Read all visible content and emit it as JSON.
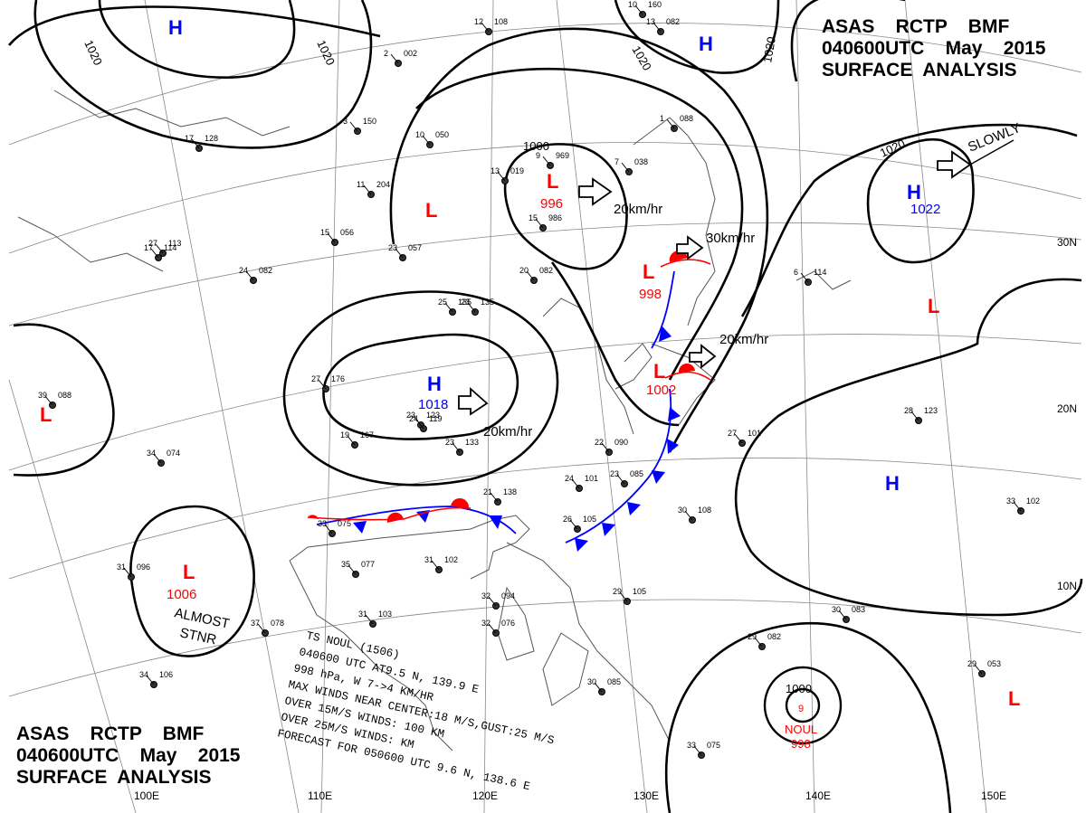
{
  "header_top": {
    "line1": "ASAS    RCTP    BMF",
    "line2": "040600UTC    May    2015",
    "line3": "SURFACE  ANALYSIS"
  },
  "header_bottom": {
    "line1": "ASAS    RCTP    BMF",
    "line2": "040600UTC    May    2015",
    "line3": "SURFACE  ANALYSIS"
  },
  "isobar_labels": [
    "1020",
    "1020",
    "1020",
    "1020",
    "1020",
    "1000",
    "1000"
  ],
  "pressure_centers": [
    {
      "type": "H",
      "value": "",
      "color": "#0000ff"
    },
    {
      "type": "H",
      "value": "",
      "color": "#0000ff"
    },
    {
      "type": "H",
      "value": "1022",
      "color": "#0000ff"
    },
    {
      "type": "H",
      "value": "1018",
      "color": "#0000ff"
    },
    {
      "type": "H",
      "value": "",
      "color": "#0000ff"
    },
    {
      "type": "L",
      "value": "996",
      "color": "#ff0000"
    },
    {
      "type": "L",
      "value": "",
      "color": "#ff0000"
    },
    {
      "type": "L",
      "value": "998",
      "color": "#ff0000"
    },
    {
      "type": "L",
      "value": "1002",
      "color": "#ff0000"
    },
    {
      "type": "L",
      "value": "1006",
      "color": "#ff0000"
    },
    {
      "type": "L",
      "value": "",
      "color": "#ff0000"
    },
    {
      "type": "L",
      "value": "",
      "color": "#ff0000"
    },
    {
      "type": "L",
      "value": "",
      "color": "#ff0000"
    }
  ],
  "motion_labels": [
    "20km/hr",
    "30km/hr",
    "20km/hr",
    "20km/hr",
    "SLOWLY"
  ],
  "almost_stnr": [
    "ALMOST",
    "STNR"
  ],
  "typhoon_center": {
    "isobar": "1000",
    "name": "NOUL",
    "pressure": "998"
  },
  "typhoon_bulletin": [
    "TS NOUL (1506)",
    "040600 UTC  AT9.5 N, 139.9 E",
    "998 hPa, W  7->4 KM/HR",
    "MAX WINDS NEAR CENTER:18 M/S,GUST:25 M/S",
    "OVER 15M/S WINDS: 100 KM",
    "OVER 25M/S WINDS:    KM",
    "FORECAST FOR 050600 UTC 9.6 N, 138.6 E"
  ],
  "latitude_labels": [
    "30N",
    "20N",
    "10N"
  ],
  "longitude_labels": [
    "100E",
    "110E",
    "120E",
    "130E",
    "140E",
    "150E"
  ],
  "station_plots": [
    {
      "n": "23",
      "t": "123"
    },
    {
      "n": "12",
      "t": "108"
    },
    {
      "n": "13",
      "t": "082"
    },
    {
      "n": "24",
      "t": "082"
    },
    {
      "n": "25",
      "t": "135"
    },
    {
      "n": "27",
      "t": "176"
    },
    {
      "n": "23",
      "t": "133"
    },
    {
      "n": "22",
      "t": "090"
    },
    {
      "n": "24",
      "t": "101"
    },
    {
      "n": "23",
      "t": "085"
    },
    {
      "n": "30",
      "t": "108"
    },
    {
      "n": "28",
      "t": "123"
    },
    {
      "n": "27",
      "t": "101"
    },
    {
      "n": "33",
      "t": "102"
    },
    {
      "n": "26",
      "t": "105"
    },
    {
      "n": "21",
      "t": "138"
    },
    {
      "n": "33",
      "t": "075"
    },
    {
      "n": "31",
      "t": "102"
    },
    {
      "n": "35",
      "t": "077"
    },
    {
      "n": "29",
      "t": "105"
    },
    {
      "n": "30",
      "t": "083"
    },
    {
      "n": "29",
      "t": "082"
    },
    {
      "n": "29",
      "t": "053"
    },
    {
      "n": "33",
      "t": "075"
    },
    {
      "n": "30",
      "t": "085"
    },
    {
      "n": "32",
      "t": "094"
    },
    {
      "n": "32",
      "t": "076"
    },
    {
      "n": "31",
      "t": "103"
    },
    {
      "n": "37",
      "t": "078"
    },
    {
      "n": "34",
      "t": "074"
    },
    {
      "n": "39",
      "t": "088"
    },
    {
      "n": "31",
      "t": "096"
    },
    {
      "n": "34",
      "t": "106"
    },
    {
      "n": "17",
      "t": "114"
    },
    {
      "n": "27",
      "t": "113"
    },
    {
      "n": "15",
      "t": "056"
    },
    {
      "n": "23",
      "t": "057"
    },
    {
      "n": "20",
      "t": "082"
    },
    {
      "n": "15",
      "t": "986"
    },
    {
      "n": "10",
      "t": "050"
    },
    {
      "n": "9",
      "t": "969"
    },
    {
      "n": "6",
      "t": "114"
    },
    {
      "n": "13",
      "t": "019"
    },
    {
      "n": "19",
      "t": "167"
    },
    {
      "n": "24",
      "t": "119"
    },
    {
      "n": "23",
      "t": "135"
    },
    {
      "n": "17",
      "t": "128"
    },
    {
      "n": "1",
      "t": "088"
    },
    {
      "n": "7",
      "t": "038"
    },
    {
      "n": "2",
      "t": "002"
    },
    {
      "n": "3",
      "t": "150"
    },
    {
      "n": "11",
      "t": "204"
    },
    {
      "n": "10",
      "t": "160"
    },
    {
      "n": "13",
      "t": "246"
    }
  ],
  "colors": {
    "isobar": "#000000",
    "high": "#0000ff",
    "low": "#ff0000",
    "cold_front": "#0000ff",
    "warm_front": "#ff0000",
    "grid": "#888888",
    "coast": "#555555"
  }
}
